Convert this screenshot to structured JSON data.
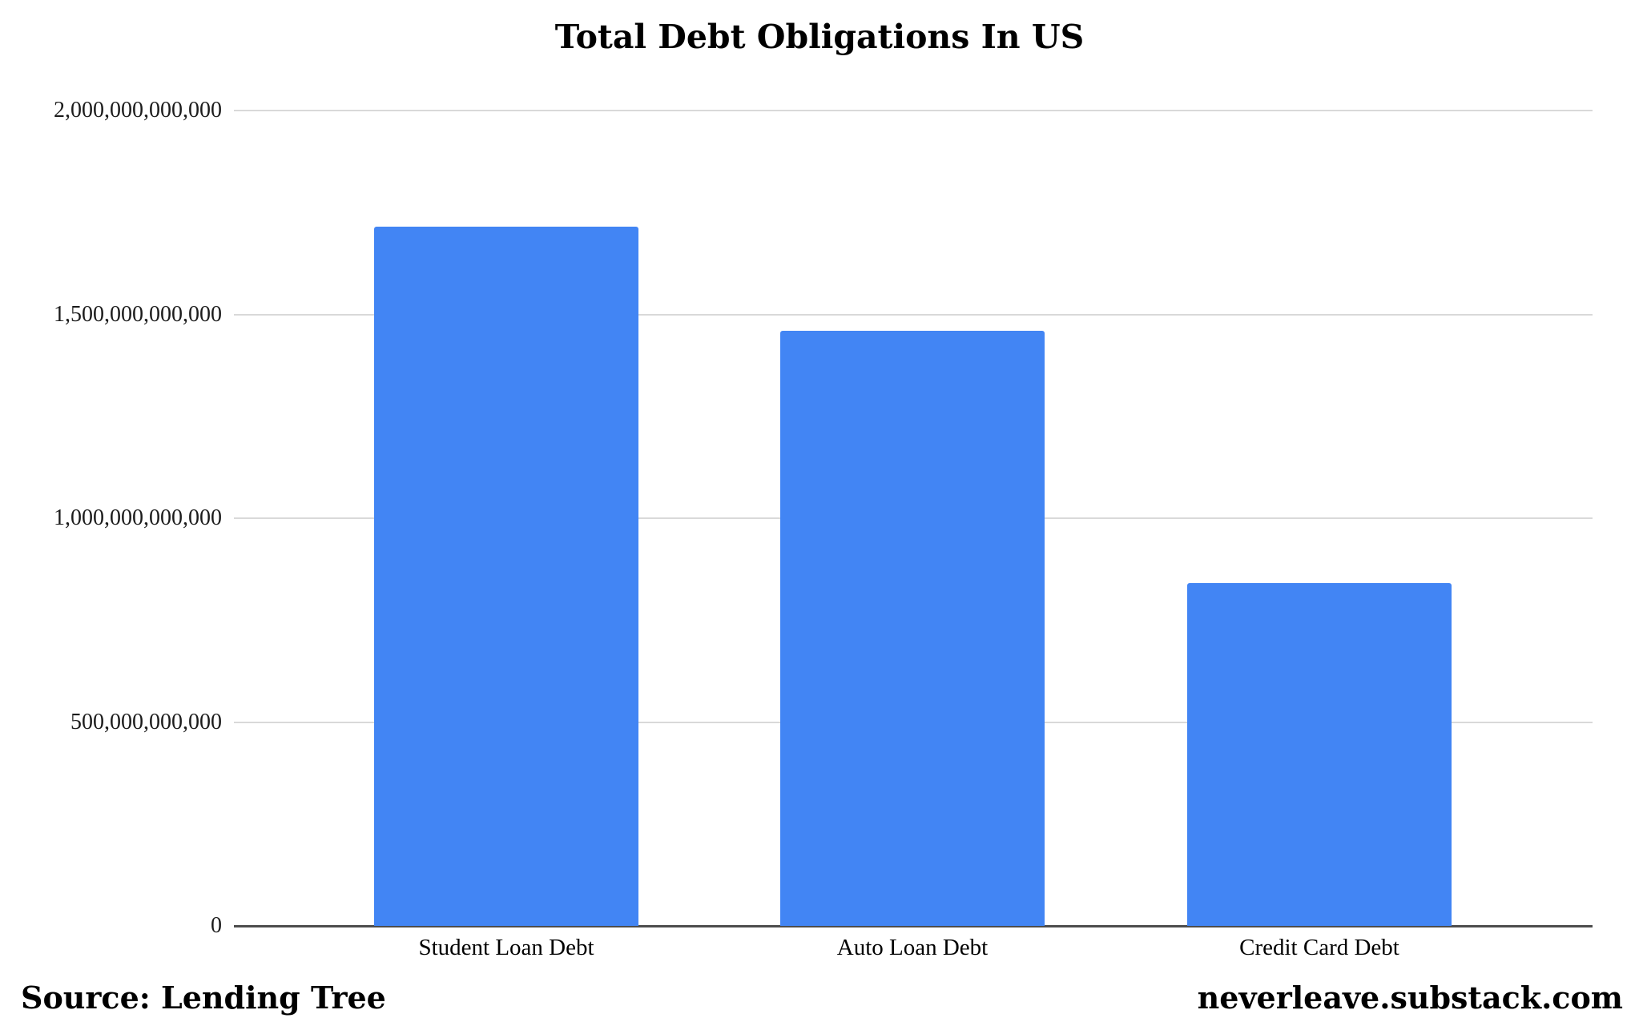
{
  "footer": {
    "source": "Source: Lending Tree",
    "site": "neverleave.substack.com"
  },
  "colors": {
    "bar": "#4285f4",
    "gridline": "#d9d9d9",
    "axis": "#4d4d4d",
    "text": "#1c1c1c"
  },
  "chart_data": {
    "type": "bar",
    "title": "Total Debt Obligations In US",
    "categories": [
      "Student Loan Debt",
      "Auto Loan Debt",
      "Credit Card Debt"
    ],
    "values": [
      1715000000000,
      1460000000000,
      840000000000
    ],
    "xlabel": "",
    "ylabel": "",
    "ylim": [
      0,
      2000000000000
    ],
    "yticks": {
      "values": [
        0,
        500000000000,
        1000000000000,
        1500000000000,
        2000000000000
      ],
      "labels": [
        "0",
        "500,000,000,000",
        "1,000,000,000,000",
        "1,500,000,000,000",
        "2,000,000,000,000"
      ]
    },
    "grid": true,
    "legend": false,
    "bar_color": "#4285f4"
  }
}
